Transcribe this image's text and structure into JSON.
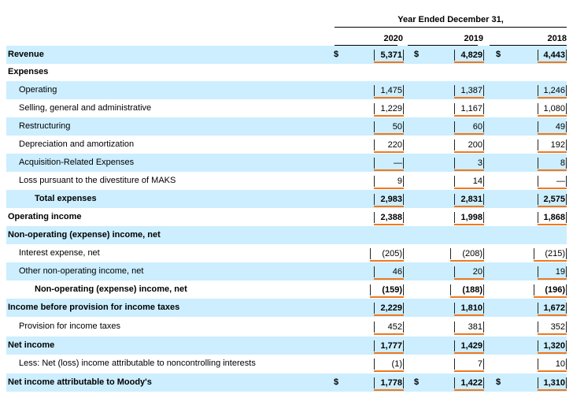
{
  "header": {
    "title": "Year Ended December 31,",
    "years": [
      "2020",
      "2019",
      "2018"
    ]
  },
  "currency_symbol": "$",
  "rows": [
    {
      "label": "Revenue",
      "values": [
        "5,371",
        "4,829",
        "4,443"
      ]
    },
    {
      "label": "Expenses",
      "values": []
    },
    {
      "label": "Operating",
      "values": [
        "1,475",
        "1,387",
        "1,246"
      ]
    },
    {
      "label": "Selling, general and administrative",
      "values": [
        "1,229",
        "1,167",
        "1,080"
      ]
    },
    {
      "label": "Restructuring",
      "values": [
        "50",
        "60",
        "49"
      ]
    },
    {
      "label": "Depreciation and amortization",
      "values": [
        "220",
        "200",
        "192"
      ]
    },
    {
      "label": "Acquisition-Related Expenses",
      "values": [
        "—",
        "3",
        "8"
      ]
    },
    {
      "label": "Loss pursuant to the divestiture of MAKS",
      "values": [
        "9",
        "14",
        "—"
      ]
    },
    {
      "label": "Total expenses",
      "values": [
        "2,983",
        "2,831",
        "2,575"
      ]
    },
    {
      "label": "Operating income",
      "values": [
        "2,388",
        "1,998",
        "1,868"
      ]
    },
    {
      "label": "Non-operating (expense) income, net",
      "values": []
    },
    {
      "label": "Interest expense, net",
      "values": [
        "(205)",
        "(208)",
        "(215)"
      ]
    },
    {
      "label": "Other non-operating income, net",
      "values": [
        "46",
        "20",
        "19"
      ]
    },
    {
      "label": "Non-operating (expense) income, net",
      "values": [
        "(159)",
        "(188)",
        "(196)"
      ]
    },
    {
      "label": "Income before provision for income taxes",
      "values": [
        "2,229",
        "1,810",
        "1,672"
      ]
    },
    {
      "label": "Provision for income taxes",
      "values": [
        "452",
        "381",
        "352"
      ]
    },
    {
      "label": "Net income",
      "values": [
        "1,777",
        "1,429",
        "1,320"
      ]
    },
    {
      "label": "Less: Net (loss) income attributable to noncontrolling interests",
      "values": [
        "(1)",
        "7",
        "10"
      ]
    },
    {
      "label": "Net income attributable to Moody's",
      "values": [
        "1,778",
        "1,422",
        "1,310"
      ]
    }
  ]
}
